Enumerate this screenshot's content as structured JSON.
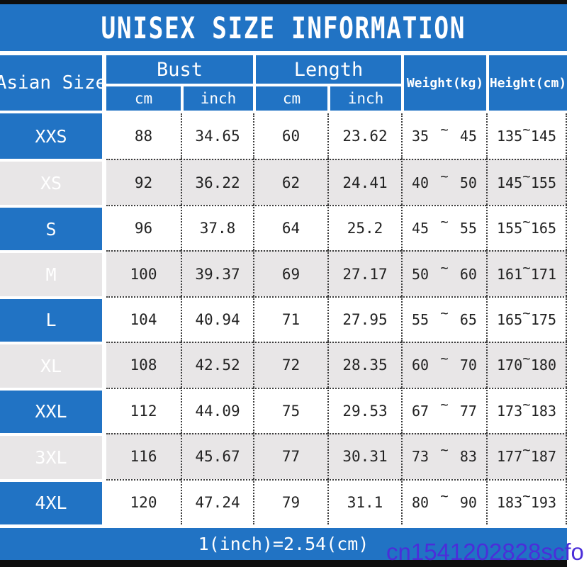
{
  "title": "UNISEX SIZE INFORMATION",
  "tilde": "~",
  "header": {
    "asian_size": "Asian Size",
    "bust": "Bust",
    "length": "Length",
    "weight": "Weight(kg)",
    "height": "Height(cm)",
    "cm": "cm",
    "inch": "inch"
  },
  "rows": [
    {
      "size": "XXS",
      "bust_cm": "88",
      "bust_inch": "34.65",
      "length_cm": "60",
      "length_inch": "23.62",
      "weight_min": "35",
      "weight_max": "45",
      "height_min": "135",
      "height_max": "145"
    },
    {
      "size": "XS",
      "bust_cm": "92",
      "bust_inch": "36.22",
      "length_cm": "62",
      "length_inch": "24.41",
      "weight_min": "40",
      "weight_max": "50",
      "height_min": "145",
      "height_max": "155"
    },
    {
      "size": "S",
      "bust_cm": "96",
      "bust_inch": "37.8",
      "length_cm": "64",
      "length_inch": "25.2",
      "weight_min": "45",
      "weight_max": "55",
      "height_min": "155",
      "height_max": "165"
    },
    {
      "size": "M",
      "bust_cm": "100",
      "bust_inch": "39.37",
      "length_cm": "69",
      "length_inch": "27.17",
      "weight_min": "50",
      "weight_max": "60",
      "height_min": "161",
      "height_max": "171"
    },
    {
      "size": "L",
      "bust_cm": "104",
      "bust_inch": "40.94",
      "length_cm": "71",
      "length_inch": "27.95",
      "weight_min": "55",
      "weight_max": "65",
      "height_min": "165",
      "height_max": "175"
    },
    {
      "size": "XL",
      "bust_cm": "108",
      "bust_inch": "42.52",
      "length_cm": "72",
      "length_inch": "28.35",
      "weight_min": "60",
      "weight_max": "70",
      "height_min": "170",
      "height_max": "180"
    },
    {
      "size": "XXL",
      "bust_cm": "112",
      "bust_inch": "44.09",
      "length_cm": "75",
      "length_inch": "29.53",
      "weight_min": "67",
      "weight_max": "77",
      "height_min": "173",
      "height_max": "183"
    },
    {
      "size": "3XL",
      "bust_cm": "116",
      "bust_inch": "45.67",
      "length_cm": "77",
      "length_inch": "30.31",
      "weight_min": "73",
      "weight_max": "83",
      "height_min": "177",
      "height_max": "187"
    },
    {
      "size": "4XL",
      "bust_cm": "120",
      "bust_inch": "47.24",
      "length_cm": "79",
      "length_inch": "31.1",
      "weight_min": "80",
      "weight_max": "90",
      "height_min": "183",
      "height_max": "193"
    }
  ],
  "footer": {
    "note": "1(inch)=2.54(cm)"
  },
  "watermark": "cn1541202828scfo",
  "colors": {
    "accent_blue": "#2173c4",
    "alt_row": "#e8e6e7",
    "watermark": "#4b2ed9",
    "bar_black": "#0e0e0e"
  }
}
